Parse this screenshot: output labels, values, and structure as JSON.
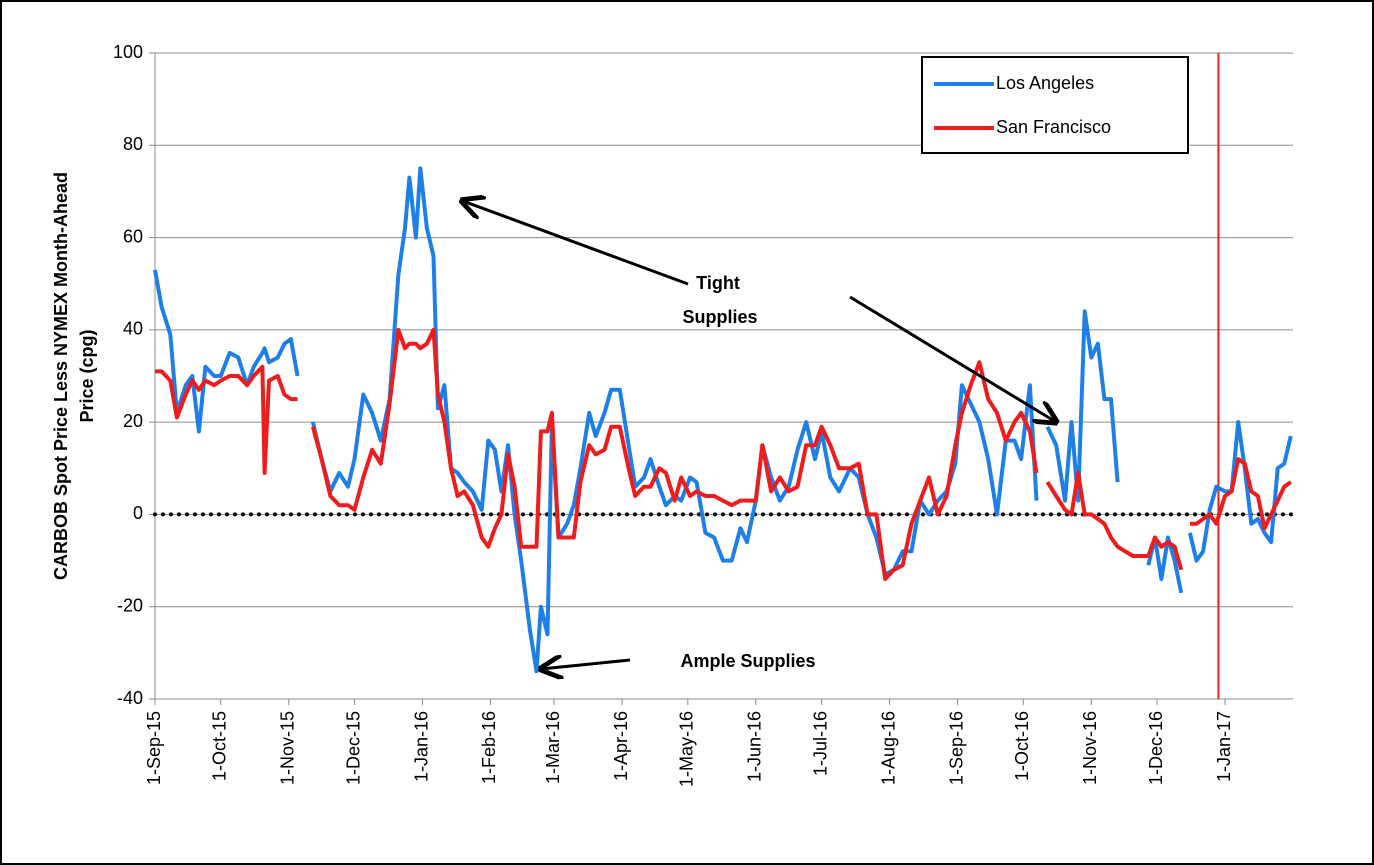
{
  "chart_data": {
    "type": "line",
    "ylabel_lines": [
      "CARBOB Spot Price Less NYMEX Month-Ahead",
      "Price (cpg)"
    ],
    "x": [
      "2015-09-01",
      "2015-09-04",
      "2015-09-08",
      "2015-09-11",
      "2015-09-15",
      "2015-09-18",
      "2015-09-21",
      "2015-09-24",
      "2015-09-28",
      "2015-10-01",
      "2015-10-05",
      "2015-10-09",
      "2015-10-13",
      "2015-10-16",
      "2015-10-20",
      "2015-10-21",
      "2015-10-23",
      "2015-10-27",
      "2015-10-30",
      "2015-11-02",
      "2015-11-05",
      "2015-11-08",
      "2015-11-12",
      "2015-11-16",
      "2015-11-20",
      "2015-11-24",
      "2015-11-28",
      "2015-12-01",
      "2015-12-05",
      "2015-12-09",
      "2015-12-13",
      "2015-12-17",
      "2015-12-21",
      "2015-12-24",
      "2015-12-26",
      "2015-12-29",
      "2015-12-31",
      "2016-01-03",
      "2016-01-06",
      "2016-01-08",
      "2016-01-11",
      "2016-01-14",
      "2016-01-17",
      "2016-01-20",
      "2016-01-24",
      "2016-01-28",
      "2016-01-31",
      "2016-02-03",
      "2016-02-06",
      "2016-02-09",
      "2016-02-12",
      "2016-02-15",
      "2016-02-19",
      "2016-02-22",
      "2016-02-24",
      "2016-02-27",
      "2016-02-29",
      "2016-03-03",
      "2016-03-07",
      "2016-03-10",
      "2016-03-13",
      "2016-03-17",
      "2016-03-20",
      "2016-03-24",
      "2016-03-27",
      "2016-03-31",
      "2016-04-04",
      "2016-04-07",
      "2016-04-11",
      "2016-04-14",
      "2016-04-18",
      "2016-04-21",
      "2016-04-25",
      "2016-04-28",
      "2016-05-02",
      "2016-05-05",
      "2016-05-09",
      "2016-05-13",
      "2016-05-17",
      "2016-05-21",
      "2016-05-25",
      "2016-05-28",
      "2016-06-01",
      "2016-06-04",
      "2016-06-08",
      "2016-06-12",
      "2016-06-16",
      "2016-06-20",
      "2016-06-24",
      "2016-06-28",
      "2016-07-01",
      "2016-07-05",
      "2016-07-09",
      "2016-07-14",
      "2016-07-18",
      "2016-07-22",
      "2016-07-26",
      "2016-07-30",
      "2016-08-03",
      "2016-08-07",
      "2016-08-11",
      "2016-08-15",
      "2016-08-19",
      "2016-08-23",
      "2016-08-27",
      "2016-08-31",
      "2016-09-03",
      "2016-09-07",
      "2016-09-11",
      "2016-09-15",
      "2016-09-19",
      "2016-09-23",
      "2016-09-27",
      "2016-09-30",
      "2016-10-04",
      "2016-10-07",
      "2016-10-09",
      "2016-10-12",
      "2016-10-16",
      "2016-10-20",
      "2016-10-23",
      "2016-10-26",
      "2016-10-29",
      "2016-11-01",
      "2016-11-04",
      "2016-11-07",
      "2016-11-10",
      "2016-11-13",
      "2016-11-20",
      "2016-11-27",
      "2016-11-30",
      "2016-12-03",
      "2016-12-06",
      "2016-12-09",
      "2016-12-12",
      "2016-12-14",
      "2016-12-16",
      "2016-12-19",
      "2016-12-22",
      "2016-12-25",
      "2016-12-28",
      "2017-01-01",
      "2017-01-04",
      "2017-01-07",
      "2017-01-10",
      "2017-01-13",
      "2017-01-16",
      "2017-01-19",
      "2017-01-22",
      "2017-01-25",
      "2017-01-28",
      "2017-01-31"
    ],
    "series": [
      {
        "name": "Los Angeles",
        "color": "#1f7fe8",
        "values": [
          53,
          45,
          39,
          22,
          28,
          30,
          18,
          32,
          30,
          30,
          35,
          34,
          28,
          32,
          35,
          36,
          33,
          34,
          37,
          38,
          30,
          null,
          20,
          12,
          5,
          9,
          6,
          12,
          26,
          22,
          16,
          25,
          52,
          62,
          73,
          60,
          75,
          62,
          56,
          23,
          28,
          10,
          9,
          7,
          5,
          1,
          16,
          14,
          5,
          15,
          0,
          -10,
          -25,
          -34,
          -20,
          -26,
          20,
          -5,
          -2,
          2,
          10,
          22,
          17,
          22,
          27,
          27,
          15,
          6,
          8,
          12,
          6,
          2,
          4,
          3,
          8,
          7,
          -4,
          -5,
          -10,
          -10,
          -3,
          -6,
          3,
          15,
          8,
          3,
          6,
          14,
          20,
          12,
          18,
          8,
          5,
          10,
          8,
          0,
          -5,
          -13,
          -12,
          -8,
          -8,
          3,
          0,
          3,
          5,
          11,
          28,
          24,
          20,
          12,
          0,
          16,
          16,
          12,
          28,
          3,
          null,
          19,
          15,
          3,
          20,
          3,
          44,
          34,
          37,
          25,
          25,
          7,
          null,
          -11,
          -5,
          -14,
          -5,
          -10,
          -17,
          null,
          -4,
          -10,
          -8,
          1,
          6,
          5,
          5,
          20,
          10,
          -2,
          -1,
          -4,
          -6,
          10,
          11,
          17
        ]
      },
      {
        "name": "San Francisco",
        "color": "#ee1c1c",
        "values": [
          31,
          31,
          29,
          21,
          26,
          29,
          27,
          29,
          28,
          29,
          30,
          30,
          28,
          30,
          32,
          9,
          29,
          30,
          26,
          25,
          25,
          null,
          19,
          12,
          4,
          2,
          2,
          1,
          8,
          14,
          11,
          24,
          40,
          36,
          37,
          37,
          36,
          37,
          40,
          26,
          20,
          10,
          4,
          5,
          2,
          -5,
          -7,
          -3,
          0,
          13,
          6,
          -7,
          -7,
          -7,
          18,
          18,
          22,
          -5,
          -5,
          -5,
          7,
          15,
          13,
          14,
          19,
          19,
          10,
          4,
          6,
          6,
          10,
          9,
          3,
          8,
          4,
          5,
          4,
          4,
          3,
          2,
          3,
          3,
          3,
          15,
          5,
          8,
          5,
          6,
          15,
          15,
          19,
          15,
          10,
          10,
          11,
          0,
          0,
          -14,
          -12,
          -11,
          -2,
          3,
          8,
          0,
          4,
          15,
          22,
          28,
          33,
          25,
          22,
          16,
          20,
          22,
          18,
          9,
          null,
          7,
          4,
          1,
          0,
          9,
          0,
          0,
          -1,
          -2,
          -5,
          -7,
          -9,
          -9,
          -5,
          -7,
          -6,
          -7,
          -12,
          null,
          -2,
          -2,
          -1,
          0,
          -2,
          4,
          5,
          12,
          11,
          5,
          4,
          -3,
          0,
          3,
          6,
          7
        ]
      }
    ],
    "xlim": [
      "2015-09-01",
      "2017-02-01"
    ],
    "xticks": [
      {
        "value": "2015-09-01",
        "label": "1-Sep-15"
      },
      {
        "value": "2015-10-01",
        "label": "1-Oct-15"
      },
      {
        "value": "2015-11-01",
        "label": "1-Nov-15"
      },
      {
        "value": "2015-12-01",
        "label": "1-Dec-15"
      },
      {
        "value": "2016-01-01",
        "label": "1-Jan-16"
      },
      {
        "value": "2016-02-01",
        "label": "1-Feb-16"
      },
      {
        "value": "2016-03-01",
        "label": "1-Mar-16"
      },
      {
        "value": "2016-04-01",
        "label": "1-Apr-16"
      },
      {
        "value": "2016-05-01",
        "label": "1-May-16"
      },
      {
        "value": "2016-06-01",
        "label": "1-Jun-16"
      },
      {
        "value": "2016-07-01",
        "label": "1-Jul-16"
      },
      {
        "value": "2016-08-01",
        "label": "1-Aug-16"
      },
      {
        "value": "2016-09-01",
        "label": "1-Sep-16"
      },
      {
        "value": "2016-10-01",
        "label": "1-Oct-16"
      },
      {
        "value": "2016-11-01",
        "label": "1-Nov-16"
      },
      {
        "value": "2016-12-01",
        "label": "1-Dec-16"
      },
      {
        "value": "2017-01-01",
        "label": "1-Jan-17"
      }
    ],
    "ylim": [
      -40,
      100
    ],
    "yticks": [
      -40,
      -20,
      0,
      20,
      40,
      60,
      80,
      100
    ],
    "grid": true,
    "legend": "top-right",
    "reference_hline": {
      "y": 0,
      "style": "dotted",
      "color": "#000000"
    },
    "reference_vline": {
      "x": "2016-12-29",
      "color": "#ee1c1c"
    },
    "annotations": [
      {
        "lines": [
          "Tight",
          "Supplies"
        ],
        "arrows": [
          {
            "x": "2016-01-19",
            "y": 68
          },
          {
            "x": "2016-10-16",
            "y": 20
          }
        ]
      },
      {
        "lines": [
          "Ample Supplies"
        ],
        "arrows": [
          {
            "x": "2016-02-24",
            "y": -33.5
          }
        ]
      }
    ]
  }
}
